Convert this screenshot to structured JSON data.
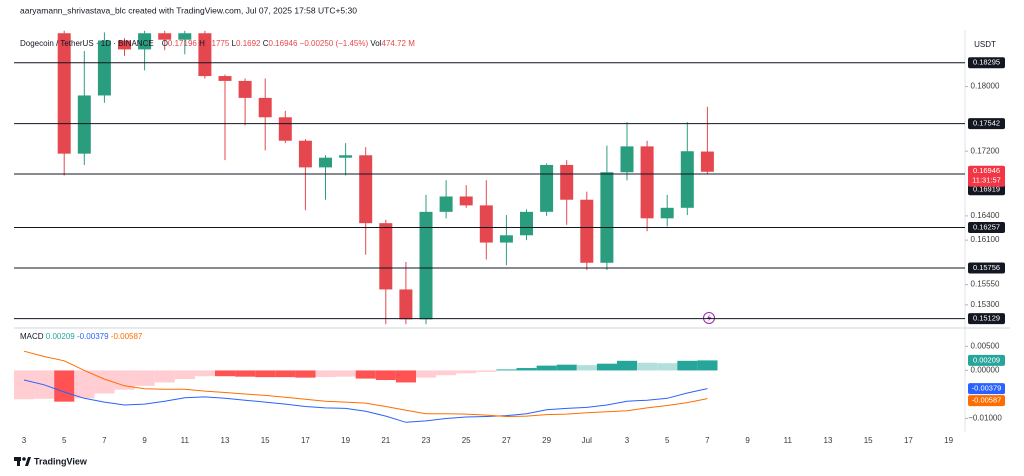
{
  "header": {
    "credit": "aaryamann_shrivastava_blc created with TradingView.com, Jul 07, 2025 17:58 UTC+5:30"
  },
  "chart_data": [
    {
      "type": "candlestick",
      "title": "Dogecoin / TetherUS · 1D · BINANCE",
      "legend": {
        "open_label": "O",
        "high_label": "H",
        "low_label": "L",
        "close_label": "C",
        "change": "−0.00250 (−1.45%)",
        "volume_label": "Vol",
        "volume": "474.72 M"
      },
      "currency": "USDT",
      "countdown": "11:31:57",
      "categories": [
        "3",
        null,
        "5",
        null,
        "7",
        null,
        "9",
        null,
        "11",
        null,
        "13",
        null,
        "15",
        null,
        "17",
        null,
        "19",
        null,
        "21",
        null,
        "23",
        null,
        "25",
        null,
        "27",
        null,
        "29",
        null,
        "Jul",
        null,
        "3",
        null,
        "5",
        null,
        "7",
        null,
        "9",
        null,
        "11",
        null,
        "13",
        null,
        "15",
        null,
        "17",
        null,
        "19"
      ],
      "open": [
        null,
        null,
        0.1866,
        0.1717,
        0.1789,
        0.1857,
        0.1846,
        0.1866,
        0.1858,
        0.1866,
        0.1813,
        0.1807,
        0.1786,
        0.1762,
        0.1733,
        0.17,
        0.1712,
        0.1715,
        0.1631,
        0.1549,
        0.1512,
        0.1645,
        0.1664,
        0.1653,
        0.1607,
        0.1616,
        0.1645,
        0.1703,
        0.166,
        0.1582,
        0.1694,
        0.1726,
        0.1637,
        0.165,
        0.17196,
        null,
        null,
        null,
        null,
        null,
        null,
        null,
        null,
        null,
        null,
        null,
        null
      ],
      "high": [
        null,
        null,
        0.1869,
        0.1844,
        0.1867,
        0.186,
        0.1869,
        0.1869,
        0.1869,
        0.1869,
        0.1815,
        0.181,
        0.181,
        0.177,
        0.1735,
        0.1715,
        0.173,
        0.1725,
        0.1635,
        0.1583,
        0.1666,
        0.1684,
        0.1678,
        0.1684,
        0.1641,
        0.1648,
        0.1705,
        0.1709,
        0.167,
        0.1727,
        0.1756,
        0.1733,
        0.1666,
        0.1756,
        0.1775,
        null,
        null,
        null,
        null,
        null,
        null,
        null,
        null,
        null,
        null,
        null,
        null
      ],
      "low": [
        null,
        null,
        0.169,
        0.1703,
        0.178,
        0.1838,
        0.182,
        0.1845,
        0.184,
        0.181,
        0.1709,
        0.1752,
        0.1721,
        0.173,
        0.1647,
        0.166,
        0.169,
        0.1592,
        0.1506,
        0.1506,
        0.1506,
        0.1637,
        0.165,
        0.1586,
        0.1579,
        0.161,
        0.164,
        0.1629,
        0.1573,
        0.1573,
        0.1684,
        0.1621,
        0.1627,
        0.1641,
        0.1692,
        null,
        null,
        null,
        null,
        null,
        null,
        null,
        null,
        null,
        null,
        null,
        null
      ],
      "close": [
        null,
        null,
        0.1717,
        0.1789,
        0.1857,
        0.1846,
        0.1866,
        0.1858,
        0.1866,
        0.1813,
        0.1807,
        0.1786,
        0.1762,
        0.1733,
        0.17,
        0.1712,
        0.1715,
        0.1631,
        0.1549,
        0.1512,
        0.1645,
        0.1664,
        0.1653,
        0.1607,
        0.1616,
        0.1645,
        0.1703,
        0.166,
        0.1582,
        0.1694,
        0.1726,
        0.1637,
        0.165,
        0.172,
        0.16946,
        null,
        null,
        null,
        null,
        null,
        null,
        null,
        null,
        null,
        null,
        null,
        null
      ],
      "up_color": "#2a9d7f",
      "down_color": "#e5474f",
      "close_tag_color": "#f23645",
      "levels": [
        0.18295,
        0.17542,
        0.16919,
        0.16257,
        0.15756,
        0.15129
      ],
      "level_color": "#131722",
      "ylim": [
        0.1505,
        0.187
      ],
      "yticks": [
        {
          "value": 0.18,
          "label": "0.18000"
        },
        {
          "value": 0.172,
          "label": "0.17200"
        },
        {
          "value": 0.164,
          "label": "0.16400"
        },
        {
          "value": 0.161,
          "label": "0.16100"
        },
        {
          "value": 0.1555,
          "label": "0.15550"
        },
        {
          "value": 0.153,
          "label": "0.15300"
        }
      ]
    },
    {
      "type": "macd",
      "title": "MACD",
      "histogram": [
        -0.006,
        -0.0059,
        -0.0065,
        -0.0058,
        -0.0048,
        -0.004,
        -0.0032,
        -0.0025,
        -0.0018,
        -0.0012,
        -0.0012,
        -0.0013,
        -0.0014,
        -0.0014,
        -0.0015,
        -0.0014,
        -0.0013,
        -0.0017,
        -0.002,
        -0.0025,
        -0.0015,
        -0.001,
        -0.0006,
        -0.0003,
        0.0002,
        0.0005,
        0.001,
        0.0012,
        0.0011,
        0.0014,
        0.002,
        0.0016,
        0.0015,
        0.002,
        0.00209,
        null,
        null,
        null,
        null,
        null,
        null,
        null,
        null,
        null,
        null,
        null,
        null
      ],
      "macd": [
        -0.002,
        -0.003,
        -0.0045,
        -0.0058,
        -0.0066,
        -0.0072,
        -0.007,
        -0.0064,
        -0.0057,
        -0.0055,
        -0.0058,
        -0.0062,
        -0.0066,
        -0.007,
        -0.0075,
        -0.0078,
        -0.0079,
        -0.0085,
        -0.0095,
        -0.0108,
        -0.0105,
        -0.01,
        -0.0097,
        -0.0096,
        -0.0094,
        -0.009,
        -0.0082,
        -0.0079,
        -0.0077,
        -0.0072,
        -0.0064,
        -0.0062,
        -0.0058,
        -0.0047,
        -0.00379,
        null,
        null,
        null,
        null,
        null,
        null,
        null,
        null,
        null,
        null,
        null,
        null
      ],
      "signal": [
        0.004,
        0.0029,
        0.002,
        0.0,
        -0.0018,
        -0.0032,
        -0.0038,
        -0.0039,
        -0.0039,
        -0.0043,
        -0.0046,
        -0.0049,
        -0.0052,
        -0.0056,
        -0.006,
        -0.0064,
        -0.0066,
        -0.0068,
        -0.0075,
        -0.0083,
        -0.009,
        -0.009,
        -0.0091,
        -0.0093,
        -0.0096,
        -0.0095,
        -0.0092,
        -0.0091,
        -0.0088,
        -0.0086,
        -0.0084,
        -0.0078,
        -0.0073,
        -0.0067,
        -0.00587,
        null,
        null,
        null,
        null,
        null,
        null,
        null,
        null,
        null,
        null,
        null,
        null
      ],
      "histogram_colors": {
        "up_strong": "#26a69a",
        "up_weak": "#b2dfdb",
        "down_strong": "#ff5252",
        "down_weak": "#ffcdd2"
      },
      "macd_color": "#2962ff",
      "signal_color": "#ff6d00",
      "ylim": [
        -0.0124,
        0.008
      ],
      "yticks": [
        {
          "value": 0.005,
          "label": "0.00500"
        },
        {
          "value": 0,
          "label": "0.00000"
        },
        {
          "value": -0.01,
          "label": "−0.01000"
        }
      ]
    }
  ],
  "footer": {
    "brand": "TradingView"
  }
}
